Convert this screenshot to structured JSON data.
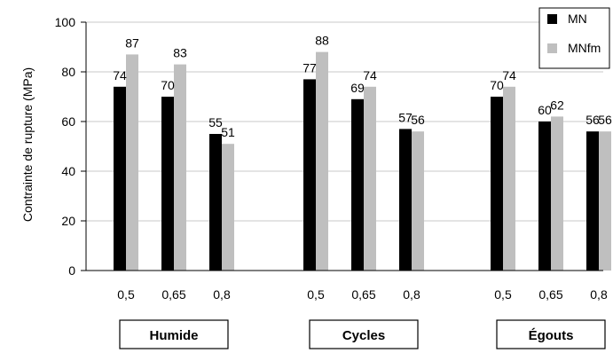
{
  "chart_data": {
    "type": "bar",
    "ylabel": "Contrainte de rupture (MPa)",
    "xlabel": "",
    "ylim": [
      0,
      100
    ],
    "yticks": [
      0,
      20,
      40,
      60,
      80,
      100
    ],
    "grid": true,
    "legend_position": "top-right",
    "groups": [
      {
        "label": "Humide",
        "categories": [
          "0,5",
          "0,65",
          "0,8"
        ]
      },
      {
        "label": "Cycles",
        "categories": [
          "0,5",
          "0,65",
          "0,8"
        ]
      },
      {
        "label": "Égouts",
        "categories": [
          "0,5",
          "0,65",
          "0,8"
        ]
      }
    ],
    "series": [
      {
        "name": "MN",
        "color": "#000000",
        "values": [
          74,
          70,
          55,
          77,
          69,
          57,
          70,
          60,
          56
        ]
      },
      {
        "name": "MNfm",
        "color": "#bfbfbf",
        "values": [
          87,
          83,
          51,
          88,
          74,
          56,
          74,
          62,
          56
        ]
      }
    ]
  }
}
